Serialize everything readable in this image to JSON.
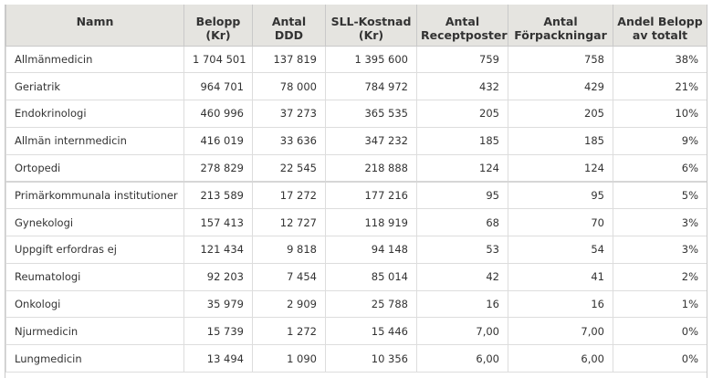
{
  "table": {
    "headers": [
      "Namn",
      "Belopp\n(Kr)",
      "Antal DDD",
      "SLL-Kostnad\n(Kr)",
      "Antal\nReceptposter",
      "Antal\nFörpackningar",
      "Andel Belopp\nav totalt"
    ],
    "rows": [
      [
        "Allmänmedicin",
        "1 704 501",
        "137 819",
        "1 395 600",
        "759",
        "758",
        "38%"
      ],
      [
        "Geriatrik",
        "964 701",
        "78 000",
        "784 972",
        "432",
        "429",
        "21%"
      ],
      [
        "Endokrinologi",
        "460 996",
        "37 273",
        "365 535",
        "205",
        "205",
        "10%"
      ],
      [
        "Allmän internmedicin",
        "416 019",
        "33 636",
        "347 232",
        "185",
        "185",
        "9%"
      ],
      [
        "Ortopedi",
        "278 829",
        "22 545",
        "218 888",
        "124",
        "124",
        "6%"
      ],
      [
        "Primärkommunala institutioner",
        "213 589",
        "17 272",
        "177 216",
        "95",
        "95",
        "5%"
      ],
      [
        "Gynekologi",
        "157 413",
        "12 727",
        "118 919",
        "68",
        "70",
        "3%"
      ],
      [
        "Uppgift erfordras ej",
        "121 434",
        "9 818",
        "94 148",
        "53",
        "54",
        "3%"
      ],
      [
        "Reumatologi",
        "92 203",
        "7 454",
        "85 014",
        "42",
        "41",
        "2%"
      ],
      [
        "Onkologi",
        "35 979",
        "2 909",
        "25 788",
        "16",
        "16",
        "1%"
      ],
      [
        "Njurmedicin",
        "15 739",
        "1 272",
        "15 446",
        "7,00",
        "7,00",
        "0%"
      ],
      [
        "Lungmedicin",
        "13 494",
        "1 090",
        "10 356",
        "6,00",
        "6,00",
        "0%"
      ]
    ]
  }
}
